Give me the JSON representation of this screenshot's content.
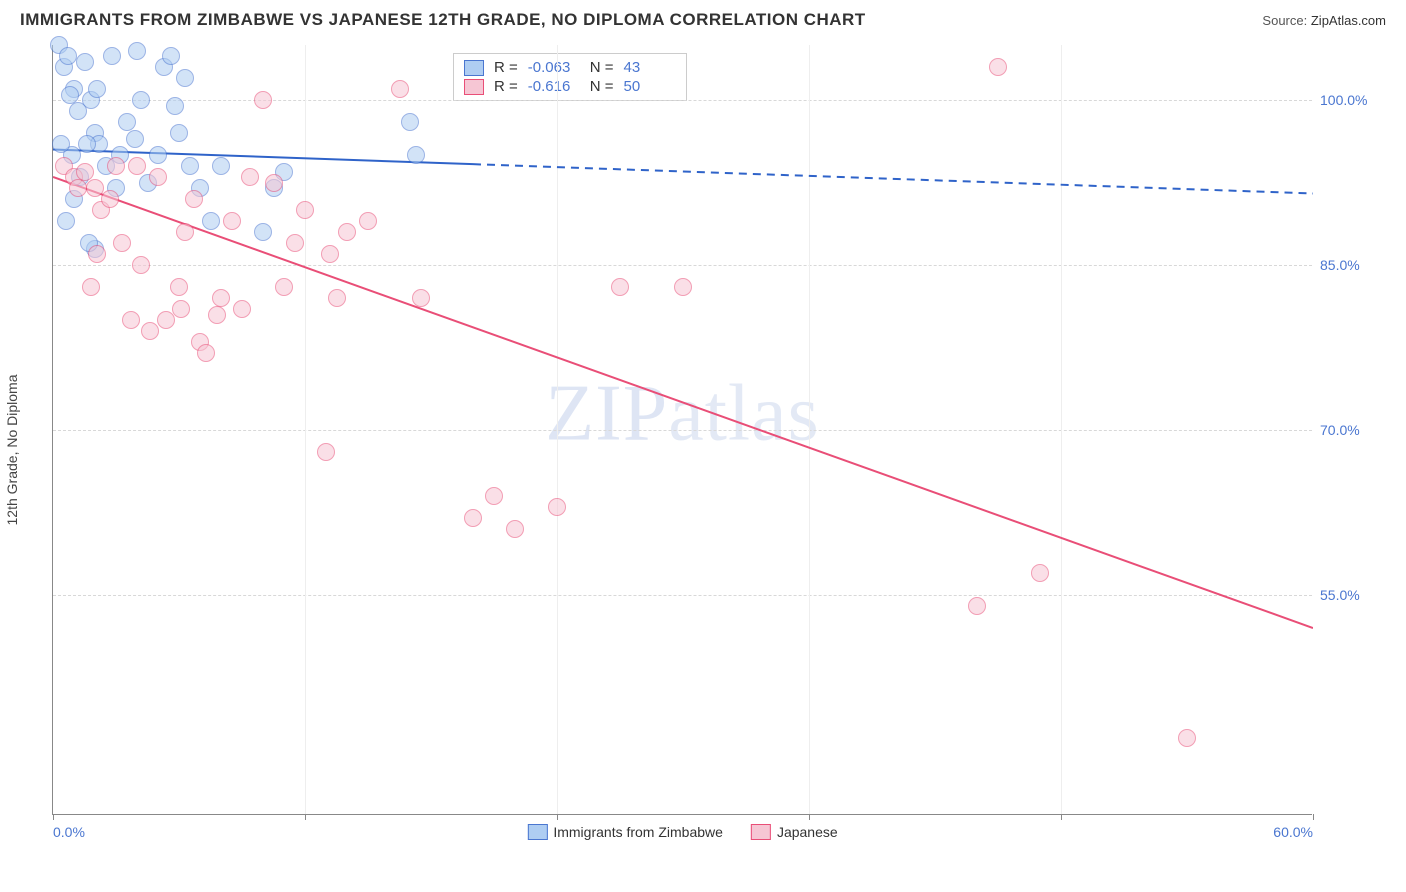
{
  "header": {
    "title": "IMMIGRANTS FROM ZIMBABWE VS JAPANESE 12TH GRADE, NO DIPLOMA CORRELATION CHART",
    "source_label": "Source:",
    "source_name": "ZipAtlas.com"
  },
  "y_axis_label": "12th Grade, No Diploma",
  "watermark": "ZIPatlas",
  "chart": {
    "type": "scatter",
    "xlim": [
      0,
      60
    ],
    "ylim": [
      35,
      105
    ],
    "x_ticks": [
      0,
      12,
      24,
      36,
      48,
      60
    ],
    "x_tick_labels": [
      "0.0%",
      "",
      "",
      "",
      "",
      "60.0%"
    ],
    "y_ticks": [
      55,
      70,
      85,
      100
    ],
    "y_tick_labels": [
      "55.0%",
      "70.0%",
      "85.0%",
      "100.0%"
    ],
    "background_color": "#ffffff",
    "grid_color": "#d8d8d8",
    "point_radius": 9,
    "point_opacity": 0.55,
    "series": [
      {
        "key": "zimbabwe",
        "label": "Immigrants from Zimbabwe",
        "color_fill": "#aecdf2",
        "color_stroke": "#4a76d0",
        "R": "-0.063",
        "N": "43",
        "trend": {
          "x1": 0,
          "y1": 95.5,
          "x2": 60,
          "y2": 91.5,
          "solid_until_x": 20,
          "color": "#2f63c9",
          "width": 2
        },
        "points": [
          [
            0.3,
            105
          ],
          [
            0.5,
            103
          ],
          [
            0.7,
            104
          ],
          [
            1,
            101
          ],
          [
            1.2,
            99
          ],
          [
            1.5,
            103.5
          ],
          [
            1.8,
            100
          ],
          [
            2,
            97
          ],
          [
            2.2,
            96
          ],
          [
            2.5,
            94
          ],
          [
            2.8,
            104
          ],
          [
            3,
            92
          ],
          [
            3.2,
            95
          ],
          [
            3.5,
            98
          ],
          [
            4,
            104.5
          ],
          [
            4.2,
            100
          ],
          [
            4.5,
            92.5
          ],
          [
            5,
            95
          ],
          [
            5.3,
            103
          ],
          [
            5.8,
            99.5
          ],
          [
            6,
            97
          ],
          [
            6.5,
            94
          ],
          [
            7,
            92
          ],
          [
            7.5,
            89
          ],
          [
            8,
            94
          ],
          [
            1,
            91
          ],
          [
            1.3,
            93
          ],
          [
            0.6,
            89
          ],
          [
            2.1,
            101
          ],
          [
            1.6,
            96
          ],
          [
            0.9,
            95
          ],
          [
            3.9,
            96.5
          ],
          [
            10.5,
            92
          ],
          [
            10,
            88
          ],
          [
            11,
            93.5
          ],
          [
            2,
            86.5
          ],
          [
            1.7,
            87
          ],
          [
            0.4,
            96
          ],
          [
            0.8,
            100.5
          ],
          [
            17,
            98
          ],
          [
            17.3,
            95
          ],
          [
            6.3,
            102
          ],
          [
            5.6,
            104
          ]
        ]
      },
      {
        "key": "japanese",
        "label": "Japanese",
        "color_fill": "#f6c6d4",
        "color_stroke": "#e94e77",
        "R": "-0.616",
        "N": "50",
        "trend": {
          "x1": 0,
          "y1": 93,
          "x2": 60,
          "y2": 52,
          "solid_until_x": 60,
          "color": "#e94e77",
          "width": 2
        },
        "points": [
          [
            0.5,
            94
          ],
          [
            1,
            93
          ],
          [
            1.2,
            92
          ],
          [
            1.5,
            93.5
          ],
          [
            2,
            92
          ],
          [
            2.3,
            90
          ],
          [
            2.7,
            91
          ],
          [
            3,
            94
          ],
          [
            3.3,
            87
          ],
          [
            4,
            94
          ],
          [
            4.2,
            85
          ],
          [
            5,
            93
          ],
          [
            5.4,
            80
          ],
          [
            6,
            83
          ],
          [
            6.3,
            88
          ],
          [
            6.7,
            91
          ],
          [
            7,
            78
          ],
          [
            7.3,
            77
          ],
          [
            8,
            82
          ],
          [
            8.5,
            89
          ],
          [
            9,
            81
          ],
          [
            9.4,
            93
          ],
          [
            10,
            100
          ],
          [
            10.5,
            92.5
          ],
          [
            11,
            83
          ],
          [
            12,
            90
          ],
          [
            13,
            68
          ],
          [
            13.5,
            82
          ],
          [
            14,
            88
          ],
          [
            15,
            89
          ],
          [
            16.5,
            101
          ],
          [
            17.5,
            82
          ],
          [
            20,
            62
          ],
          [
            21,
            64
          ],
          [
            22,
            61
          ],
          [
            24,
            63
          ],
          [
            27,
            83
          ],
          [
            30,
            83
          ],
          [
            45,
            103
          ],
          [
            47,
            57
          ],
          [
            44,
            54
          ],
          [
            54,
            42
          ],
          [
            4.6,
            79
          ],
          [
            3.7,
            80
          ],
          [
            2.1,
            86
          ],
          [
            1.8,
            83
          ],
          [
            6.1,
            81
          ],
          [
            7.8,
            80.5
          ],
          [
            11.5,
            87
          ],
          [
            13.2,
            86
          ]
        ]
      }
    ]
  },
  "legend_top": {
    "r_label": "R =",
    "n_label": "N ="
  }
}
